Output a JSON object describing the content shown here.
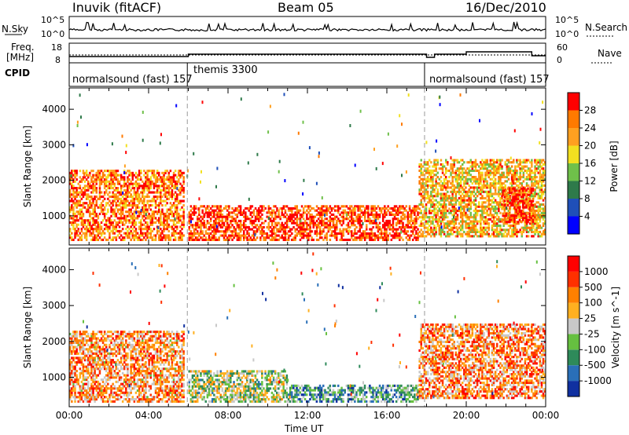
{
  "header": {
    "station": "Inuvik (fitACF)",
    "beam": "Beam 05",
    "date": "16/Dec/2010"
  },
  "top_panels": {
    "nsky_label": "N.Sky",
    "nsky_ticks": [
      "10^5",
      "10^0"
    ],
    "nsearch_label": "N.Search",
    "nsearch_ticks": [
      "10^5",
      "10^0"
    ],
    "freq_label_1": "Freq.",
    "freq_label_2": "[MHz]",
    "freq_ticks": [
      "18",
      "8"
    ],
    "nave_label": "Nave",
    "nave_ticks": [
      "60",
      "0"
    ],
    "cpid_label": "CPID",
    "cpid_segments": [
      {
        "name": "normalsound (fast) 157"
      },
      {
        "name": "themis 3300"
      },
      {
        "name": "normalsound (fast) 157"
      }
    ]
  },
  "chart_data": [
    {
      "type": "heatmap",
      "title": "",
      "xlabel": "Time UT",
      "ylabel": "Slant Range [km]",
      "colorbar_label": "Power [dB]",
      "x_tick_labels": [
        "00:00",
        "04:00",
        "08:00",
        "12:00",
        "16:00",
        "20:00",
        "00:00"
      ],
      "y_tick_labels": [
        "1000",
        "2000",
        "3000",
        "4000"
      ],
      "xlim_hours": [
        0,
        24
      ],
      "ylim_km": [
        180,
        4600
      ],
      "colorbar_ticks": [
        "4",
        "8",
        "12",
        "16",
        "20",
        "24",
        "28"
      ],
      "colors": [
        "#0000ff",
        "#1f4fb8",
        "#2e7a4a",
        "#6fc04a",
        "#f2e020",
        "#ffa020",
        "#ff7a00",
        "#ff0000"
      ],
      "regions": [
        {
          "t0": 0.0,
          "t1": 5.8,
          "r0": 300,
          "r1": 2300,
          "level": 0.78
        },
        {
          "t0": 6.0,
          "t1": 17.6,
          "r0": 300,
          "r1": 1300,
          "level": 0.88
        },
        {
          "t0": 17.6,
          "t1": 24.0,
          "r0": 400,
          "r1": 2600,
          "level": 0.66
        },
        {
          "t0": 21.8,
          "t1": 23.4,
          "r0": 800,
          "r1": 1800,
          "level": 0.95
        }
      ]
    },
    {
      "type": "heatmap",
      "title": "",
      "xlabel": "Time UT",
      "ylabel": "Slant Range [km]",
      "colorbar_label": "Velocity [m s^-1]",
      "x_tick_labels": [
        "00:00",
        "04:00",
        "08:00",
        "12:00",
        "16:00",
        "20:00",
        "00:00"
      ],
      "y_tick_labels": [
        "1000",
        "2000",
        "3000",
        "4000"
      ],
      "xlim_hours": [
        0,
        24
      ],
      "ylim_km": [
        180,
        4600
      ],
      "colorbar_ticks": [
        "1000",
        "500",
        "100",
        "25",
        "-25",
        "-100",
        "-500",
        "-1000"
      ],
      "colors": [
        "#1030a0",
        "#2a6fb8",
        "#2e8a5a",
        "#66c040",
        "#c8c8c8",
        "#ffb020",
        "#ff8000",
        "#ff3000",
        "#ff0000"
      ],
      "regions": [
        {
          "t0": 0.0,
          "t1": 5.8,
          "r0": 300,
          "r1": 2300,
          "level": 0.68
        },
        {
          "t0": 6.0,
          "t1": 11.0,
          "r0": 300,
          "r1": 1200,
          "level": 0.45
        },
        {
          "t0": 11.0,
          "t1": 17.6,
          "r0": 300,
          "r1": 800,
          "level": 0.3
        },
        {
          "t0": 17.6,
          "t1": 24.0,
          "r0": 400,
          "r1": 2500,
          "level": 0.7
        }
      ]
    }
  ]
}
